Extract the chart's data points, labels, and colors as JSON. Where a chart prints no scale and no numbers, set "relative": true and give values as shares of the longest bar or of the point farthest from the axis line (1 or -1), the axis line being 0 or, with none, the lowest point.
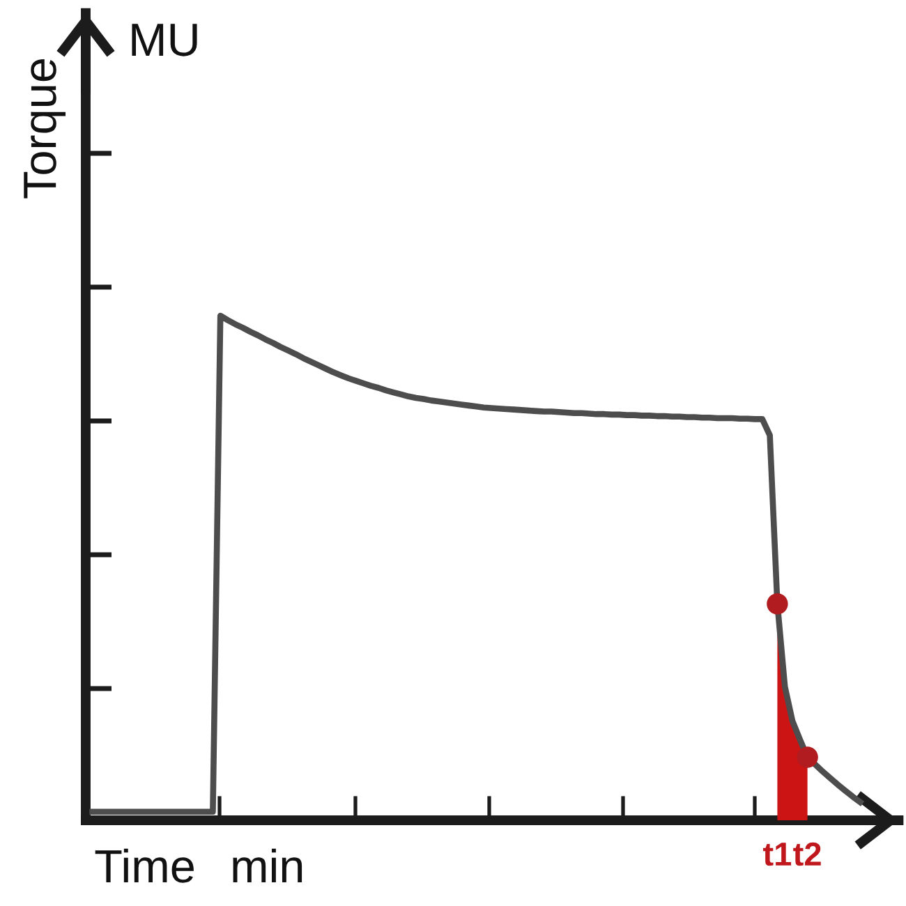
{
  "chart_data": {
    "type": "line",
    "relative": true,
    "xlabel": "Time",
    "ylabel": "Torque",
    "annotations": [
      "MU",
      "min"
    ],
    "categories": [
      null,
      null,
      null,
      null,
      null,
      null,
      null,
      null,
      null,
      null,
      null,
      null,
      null,
      null,
      null,
      null,
      null,
      null,
      null,
      null,
      null,
      null,
      null,
      null,
      null,
      null,
      null,
      null,
      null,
      null,
      null,
      null,
      null,
      null,
      null,
      null,
      null,
      null,
      null,
      null,
      null,
      null,
      null,
      null,
      null,
      null,
      null,
      null,
      null,
      null,
      null,
      null,
      null,
      null,
      null,
      null,
      null,
      null,
      null,
      null,
      null,
      null,
      null,
      null,
      null,
      null,
      null,
      null,
      null,
      null,
      null,
      null,
      null,
      null,
      null,
      null,
      null,
      null,
      null,
      null,
      null,
      null,
      null,
      null,
      null,
      null,
      null,
      null,
      null,
      null,
      null,
      "t1",
      null,
      null,
      null,
      "t2",
      null,
      null,
      null,
      null,
      null,
      null,
      null
    ],
    "tick_labels": "x",
    "line_style": "solid",
    "series": [
      {
        "color": "#4d4d4d",
        "values": [
          0.017,
          0.017,
          0.017,
          0.017,
          0.017,
          0.017,
          0.017,
          0.017,
          0.017,
          0.017,
          0.017,
          0.017,
          0.017,
          0.017,
          0.017,
          0.017,
          0.017,
          1.0,
          0.991,
          0.983,
          0.976,
          0.968,
          0.961,
          0.953,
          0.946,
          0.938,
          0.931,
          0.924,
          0.916,
          0.909,
          0.902,
          0.895,
          0.888,
          0.882,
          0.876,
          0.871,
          0.866,
          0.861,
          0.857,
          0.852,
          0.848,
          0.844,
          0.84,
          0.837,
          0.835,
          0.832,
          0.83,
          0.828,
          0.826,
          0.824,
          0.822,
          0.82,
          0.818,
          0.817,
          0.816,
          0.815,
          0.814,
          0.813,
          0.812,
          0.811,
          0.81,
          0.81,
          0.809,
          0.808,
          0.807,
          0.807,
          0.806,
          0.805,
          0.805,
          0.804,
          0.804,
          0.803,
          0.803,
          0.802,
          0.802,
          0.801,
          0.801,
          0.8,
          0.8,
          0.799,
          0.799,
          0.798,
          0.798,
          0.797,
          0.797,
          0.797,
          0.796,
          0.796,
          0.795,
          0.795,
          0.763,
          0.429,
          0.265,
          0.197,
          0.16,
          0.125,
          0.111,
          0.097,
          0.084,
          0.071,
          0.059,
          0.047,
          0.036
        ]
      },
      {
        "type": "area",
        "color": "#cc1414",
        "values": [
          null,
          null,
          null,
          null,
          null,
          null,
          null,
          null,
          null,
          null,
          null,
          null,
          null,
          null,
          null,
          null,
          null,
          null,
          null,
          null,
          null,
          null,
          null,
          null,
          null,
          null,
          null,
          null,
          null,
          null,
          null,
          null,
          null,
          null,
          null,
          null,
          null,
          null,
          null,
          null,
          null,
          null,
          null,
          null,
          null,
          null,
          null,
          null,
          null,
          null,
          null,
          null,
          null,
          null,
          null,
          null,
          null,
          null,
          null,
          null,
          null,
          null,
          null,
          null,
          null,
          null,
          null,
          null,
          null,
          null,
          null,
          null,
          null,
          null,
          null,
          null,
          null,
          null,
          null,
          null,
          null,
          null,
          null,
          null,
          null,
          null,
          null,
          null,
          null,
          null,
          null,
          0.429,
          0.265,
          0.197,
          0.16,
          0.125,
          null,
          null,
          null,
          null,
          null,
          null,
          null
        ]
      },
      {
        "type": "scatter",
        "color": "#b01c1f",
        "marker": "circle",
        "values": [
          null,
          null,
          null,
          null,
          null,
          null,
          null,
          null,
          null,
          null,
          null,
          null,
          null,
          null,
          null,
          null,
          null,
          null,
          null,
          null,
          null,
          null,
          null,
          null,
          null,
          null,
          null,
          null,
          null,
          null,
          null,
          null,
          null,
          null,
          null,
          null,
          null,
          null,
          null,
          null,
          null,
          null,
          null,
          null,
          null,
          null,
          null,
          null,
          null,
          null,
          null,
          null,
          null,
          null,
          null,
          null,
          null,
          null,
          null,
          null,
          null,
          null,
          null,
          null,
          null,
          null,
          null,
          null,
          null,
          null,
          null,
          null,
          null,
          null,
          null,
          null,
          null,
          null,
          null,
          null,
          null,
          null,
          null,
          null,
          null,
          null,
          null,
          null,
          null,
          null,
          null,
          0.429,
          null,
          null,
          null,
          0.125,
          null,
          null,
          null,
          null,
          null,
          null,
          null
        ]
      }
    ]
  }
}
